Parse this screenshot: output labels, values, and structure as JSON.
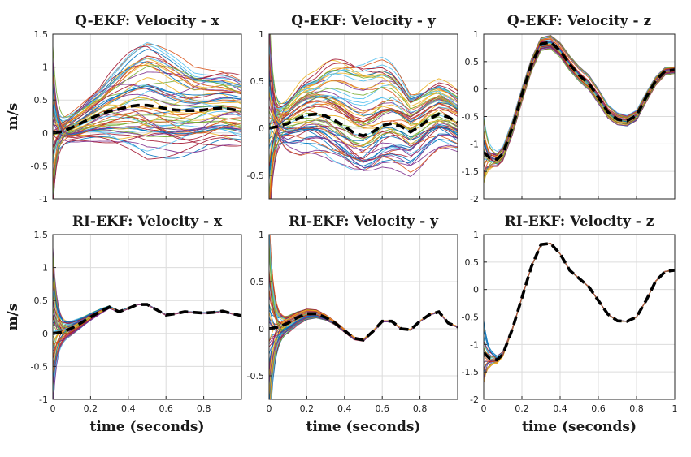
{
  "chart_data": [
    {
      "type": "line",
      "title": "Q-EKF: Velocity - x",
      "xlabel": "",
      "ylabel": "m/s",
      "xlim": [
        0,
        1
      ],
      "ylim": [
        -1,
        1.5
      ],
      "xticks": [
        0,
        0.2,
        0.4,
        0.6,
        0.8
      ],
      "xtick_labels_shown": false,
      "yticks": [
        -1,
        -0.5,
        0,
        0.5,
        1,
        1.5
      ],
      "ytick_labels": [
        "-1",
        "-0.5",
        "0",
        "0.5",
        "1",
        "1.5"
      ],
      "grid": true,
      "ensemble": {
        "count": 60,
        "spread_shape": [
          0.1,
          0.28,
          0.5,
          0.72,
          0.65,
          0.55,
          0.5
        ],
        "start_spread": 1.25,
        "peak_offset": 0.55
      },
      "series": [
        {
          "style": "dashed",
          "color": "#000000",
          "x": [
            0,
            0.05,
            0.1,
            0.15,
            0.2,
            0.25,
            0.3,
            0.35,
            0.4,
            0.45,
            0.5,
            0.55,
            0.6,
            0.65,
            0.7,
            0.75,
            0.8,
            0.85,
            0.9,
            0.95,
            1.0
          ],
          "values": [
            0,
            0.02,
            0.08,
            0.15,
            0.22,
            0.28,
            0.33,
            0.36,
            0.4,
            0.42,
            0.42,
            0.4,
            0.37,
            0.35,
            0.34,
            0.34,
            0.35,
            0.37,
            0.38,
            0.36,
            0.33
          ]
        }
      ]
    },
    {
      "type": "line",
      "title": "Q-EKF: Velocity - y",
      "xlabel": "",
      "ylabel": "",
      "xlim": [
        0,
        1
      ],
      "ylim": [
        -0.75,
        1
      ],
      "xticks": [
        0,
        0.2,
        0.4,
        0.6,
        0.8
      ],
      "xtick_labels_shown": false,
      "yticks": [
        -0.5,
        0,
        0.5,
        1
      ],
      "ytick_labels": [
        "-0.5",
        "0",
        "0.5",
        "1"
      ],
      "grid": true,
      "ensemble": {
        "count": 60,
        "spread_shape": [
          0.1,
          0.35,
          0.45,
          0.45,
          0.42,
          0.35,
          0.3
        ],
        "start_spread": 1.3,
        "peak_offset": 0.5
      },
      "series": [
        {
          "style": "dashed",
          "color": "#000000",
          "x": [
            0,
            0.05,
            0.1,
            0.15,
            0.2,
            0.25,
            0.3,
            0.35,
            0.4,
            0.45,
            0.5,
            0.55,
            0.6,
            0.65,
            0.7,
            0.75,
            0.8,
            0.85,
            0.9,
            0.95,
            1.0
          ],
          "values": [
            0,
            0.02,
            0.05,
            0.1,
            0.14,
            0.15,
            0.13,
            0.08,
            0.02,
            -0.05,
            -0.08,
            -0.04,
            0.03,
            0.05,
            0.02,
            -0.04,
            0.02,
            0.1,
            0.15,
            0.12,
            0.06
          ]
        }
      ]
    },
    {
      "type": "line",
      "title": "Q-EKF: Velocity - z",
      "xlabel": "",
      "ylabel": "",
      "xlim": [
        0,
        1
      ],
      "ylim": [
        -2,
        1
      ],
      "xticks": [
        0,
        0.2,
        0.4,
        0.6,
        0.8
      ],
      "xtick_labels_shown": false,
      "yticks": [
        -2,
        -1.5,
        -1,
        -0.5,
        0,
        0.5,
        1
      ],
      "ytick_labels": [
        "-2",
        "-1.5",
        "-1",
        "-0.5",
        "0",
        "0.5",
        "1"
      ],
      "grid": true,
      "ensemble": {
        "count": 40,
        "spread_shape": [
          0.1,
          0.12,
          0.1,
          0.1,
          0.1,
          0.08,
          0.06
        ],
        "start_spread": 0.6,
        "peak_offset": 0.14
      },
      "series": [
        {
          "style": "dashed",
          "color": "#000000",
          "x": [
            0,
            0.03,
            0.07,
            0.1,
            0.15,
            0.2,
            0.25,
            0.3,
            0.35,
            0.4,
            0.45,
            0.5,
            0.55,
            0.6,
            0.65,
            0.7,
            0.75,
            0.8,
            0.85,
            0.9,
            0.95,
            1.0
          ],
          "values": [
            -1.15,
            -1.25,
            -1.28,
            -1.18,
            -0.7,
            -0.1,
            0.45,
            0.82,
            0.85,
            0.7,
            0.45,
            0.25,
            0.1,
            -0.15,
            -0.42,
            -0.55,
            -0.58,
            -0.48,
            -0.15,
            0.15,
            0.33,
            0.35
          ]
        }
      ]
    },
    {
      "type": "line",
      "title": "RI-EKF: Velocity - x",
      "xlabel": "time (seconds)",
      "ylabel": "m/s",
      "xlim": [
        0,
        1
      ],
      "ylim": [
        -1,
        1.5
      ],
      "xticks": [
        0,
        0.2,
        0.4,
        0.6,
        0.8
      ],
      "xtick_labels_shown": true,
      "xtick_labels": [
        "0",
        "0.2",
        "0.4",
        "0.6",
        "0.8"
      ],
      "yticks": [
        -1,
        -0.5,
        0,
        0.5,
        1,
        1.5
      ],
      "ytick_labels": [
        "-1",
        "-0.5",
        "0",
        "0.5",
        "1",
        "1.5"
      ],
      "grid": true,
      "ensemble": {
        "count": 60,
        "spread_shape": [
          0.15,
          0.06,
          0.01,
          0.005,
          0.005,
          0.005,
          0.005
        ],
        "start_spread": 1.3,
        "peak_offset": 0
      },
      "series": [
        {
          "style": "dashed",
          "color": "#000000",
          "x": [
            0,
            0.05,
            0.1,
            0.15,
            0.2,
            0.25,
            0.3,
            0.35,
            0.4,
            0.45,
            0.5,
            0.55,
            0.6,
            0.65,
            0.7,
            0.75,
            0.8,
            0.85,
            0.9,
            0.95,
            1.0
          ],
          "values": [
            0,
            0.02,
            0.08,
            0.16,
            0.25,
            0.33,
            0.4,
            0.33,
            0.38,
            0.44,
            0.44,
            0.36,
            0.28,
            0.3,
            0.33,
            0.32,
            0.31,
            0.32,
            0.34,
            0.3,
            0.27
          ]
        }
      ]
    },
    {
      "type": "line",
      "title": "RI-EKF: Velocity - y",
      "xlabel": "time (seconds)",
      "ylabel": "",
      "xlim": [
        0,
        1
      ],
      "ylim": [
        -0.75,
        1
      ],
      "xticks": [
        0,
        0.2,
        0.4,
        0.6,
        0.8
      ],
      "xtick_labels_shown": true,
      "xtick_labels": [
        "0",
        "0.2",
        "0.4",
        "0.6",
        "0.8"
      ],
      "yticks": [
        -0.5,
        0,
        0.5,
        1
      ],
      "ytick_labels": [
        "-0.5",
        "0",
        "0.5",
        "1"
      ],
      "grid": true,
      "ensemble": {
        "count": 60,
        "spread_shape": [
          0.12,
          0.06,
          0.02,
          0.01,
          0.005,
          0.005,
          0.005
        ],
        "start_spread": 1.2,
        "peak_offset": 0
      },
      "series": [
        {
          "style": "dashed",
          "color": "#000000",
          "x": [
            0,
            0.05,
            0.1,
            0.15,
            0.2,
            0.25,
            0.3,
            0.35,
            0.4,
            0.45,
            0.5,
            0.55,
            0.6,
            0.65,
            0.7,
            0.75,
            0.8,
            0.85,
            0.9,
            0.95,
            1.0
          ],
          "values": [
            0,
            0.02,
            0.06,
            0.12,
            0.16,
            0.16,
            0.12,
            0.06,
            -0.02,
            -0.1,
            -0.12,
            -0.03,
            0.08,
            0.08,
            0.0,
            -0.01,
            0.08,
            0.15,
            0.18,
            0.06,
            0.02
          ]
        }
      ]
    },
    {
      "type": "line",
      "title": "RI-EKF: Velocity - z",
      "xlabel": "time (seconds)",
      "ylabel": "",
      "xlim": [
        0,
        1
      ],
      "ylim": [
        -2,
        1
      ],
      "xticks": [
        0,
        0.2,
        0.4,
        0.6,
        0.8,
        1
      ],
      "xtick_labels_shown": true,
      "xtick_labels": [
        "0",
        "0.2",
        "0.4",
        "0.6",
        "0.8",
        "1"
      ],
      "yticks": [
        -2,
        -1.5,
        -1,
        -0.5,
        0,
        0.5,
        1
      ],
      "ytick_labels": [
        "-2",
        "-1.5",
        "-1",
        "-0.5",
        "0",
        "0.5",
        "1"
      ],
      "grid": true,
      "ensemble": {
        "count": 30,
        "spread_shape": [
          0.08,
          0.01,
          0.005,
          0.005,
          0.005,
          0.005,
          0.005
        ],
        "start_spread": 0.6,
        "peak_offset": 0
      },
      "series": [
        {
          "style": "dashed",
          "color": "#000000",
          "x": [
            0,
            0.03,
            0.07,
            0.1,
            0.15,
            0.2,
            0.25,
            0.3,
            0.35,
            0.4,
            0.45,
            0.5,
            0.55,
            0.6,
            0.65,
            0.7,
            0.75,
            0.8,
            0.85,
            0.9,
            0.95,
            1.0
          ],
          "values": [
            -1.15,
            -1.25,
            -1.28,
            -1.18,
            -0.72,
            -0.15,
            0.42,
            0.82,
            0.84,
            0.65,
            0.35,
            0.2,
            0.05,
            -0.2,
            -0.45,
            -0.57,
            -0.58,
            -0.5,
            -0.2,
            0.15,
            0.33,
            0.35
          ]
        }
      ]
    }
  ]
}
